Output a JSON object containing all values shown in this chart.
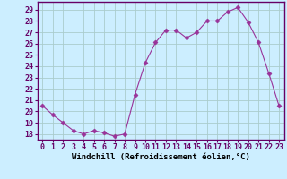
{
  "hours": [
    0,
    1,
    2,
    3,
    4,
    5,
    6,
    7,
    8,
    9,
    10,
    11,
    12,
    13,
    14,
    15,
    16,
    17,
    18,
    19,
    20,
    21,
    22,
    23
  ],
  "values": [
    20.5,
    19.7,
    19.0,
    18.3,
    18.0,
    18.3,
    18.1,
    17.8,
    18.0,
    21.5,
    24.3,
    26.1,
    27.2,
    27.2,
    26.5,
    27.0,
    28.0,
    28.0,
    28.8,
    29.2,
    27.9,
    26.1,
    23.4,
    20.5
  ],
  "line_color": "#993399",
  "marker": "D",
  "marker_size": 2.5,
  "bg_color": "#cceeff",
  "grid_color": "#aacccc",
  "ylabel_values": [
    18,
    19,
    20,
    21,
    22,
    23,
    24,
    25,
    26,
    27,
    28,
    29
  ],
  "ylim": [
    17.5,
    29.7
  ],
  "xlim": [
    -0.5,
    23.5
  ],
  "xlabel": "Windchill (Refroidissement éolien,°C)",
  "axis_fontsize": 6.5,
  "tick_fontsize": 6.0
}
